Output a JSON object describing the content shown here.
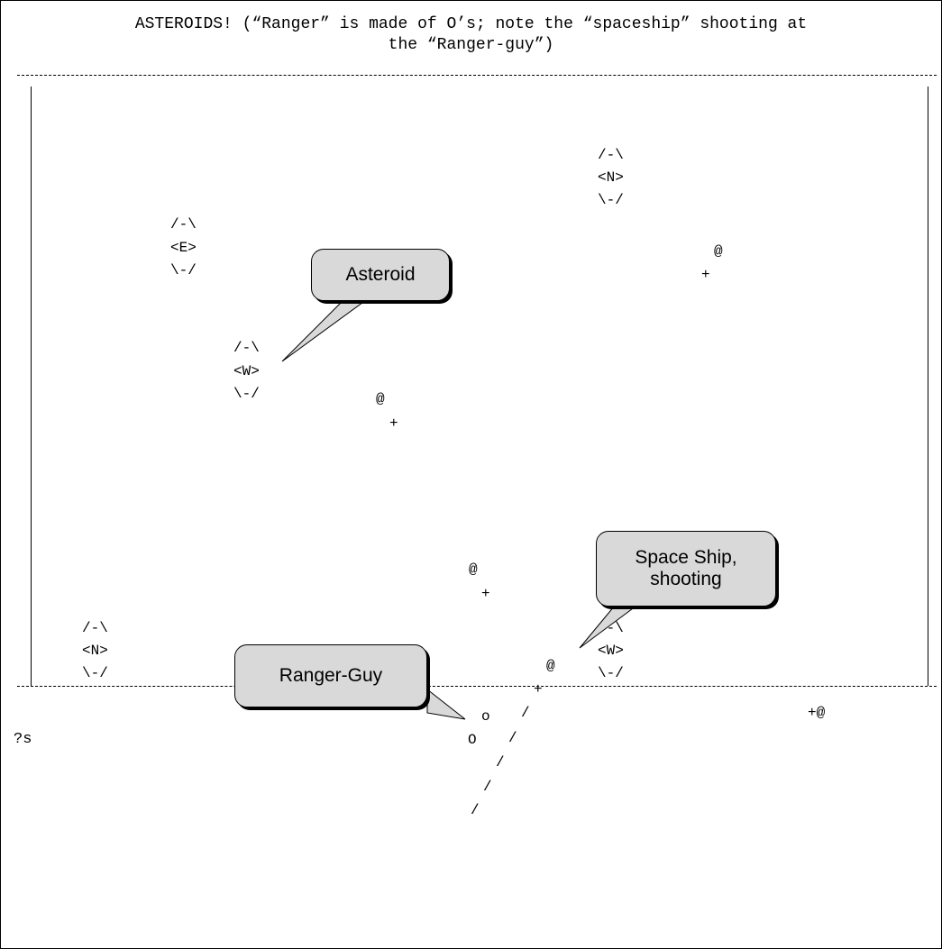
{
  "header": {
    "line1": "ASTEROIDS! (“Ranger” is made of O’s; note the “spaceship” shooting at",
    "line2": "the “Ranger-guy”)"
  },
  "asteroids": [
    {
      "top": "/-\\",
      "mid": "<N>",
      "bot": "\\-/"
    },
    {
      "top": "/-\\",
      "mid": "<E>",
      "bot": "\\-/"
    },
    {
      "top": "/-\\",
      "mid": "<W>",
      "bot": "\\-/"
    },
    {
      "top": "/-\\",
      "mid": "<N>",
      "bot": "\\-/"
    },
    {
      "top": "/-\\",
      "mid": "<W>",
      "bot": "\\-/"
    }
  ],
  "ships": [
    {
      "at": "@",
      "plus": "+"
    },
    {
      "at": "@",
      "plus": "+"
    },
    {
      "at": "@",
      "plus": "+"
    },
    {
      "at": "@",
      "plus": "+"
    },
    {
      "combined": "+@"
    }
  ],
  "ranger": {
    "top": "o",
    "bottom": "O"
  },
  "shot": {
    "segments": [
      "/",
      "/",
      "/",
      "/",
      "/"
    ]
  },
  "callouts": {
    "asteroid": "Asteroid",
    "space_ship_line1": "Space Ship,",
    "space_ship_line2": "shooting",
    "ranger_guy": "Ranger-Guy"
  },
  "prompt": "?s"
}
